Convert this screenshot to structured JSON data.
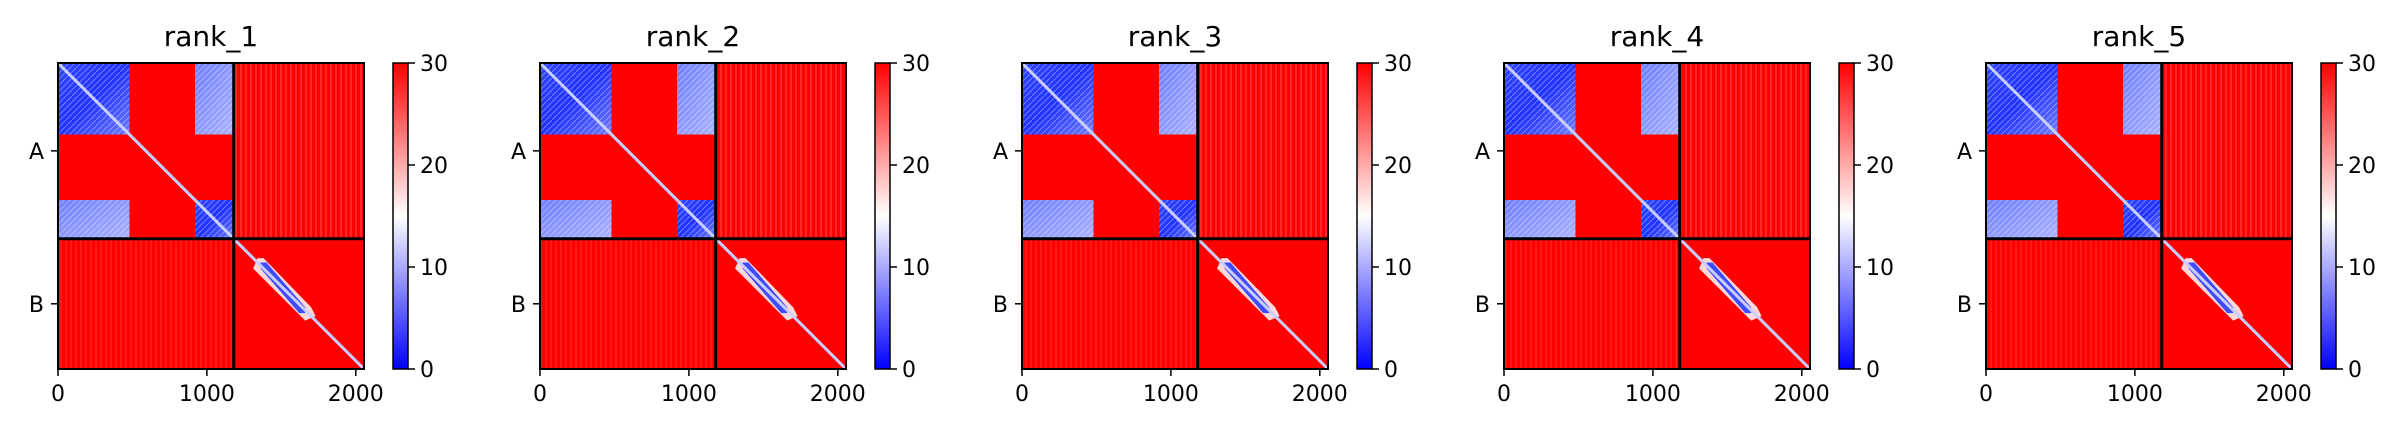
{
  "chart_data": {
    "type": "heatmap",
    "colormap": {
      "name": "bwr",
      "low_color": "#0000ff",
      "mid_color": "#ffffff",
      "high_color": "#ff0000",
      "vmin": 0,
      "vmax": 30,
      "ticks": [
        "0",
        "10",
        "20",
        "30"
      ]
    },
    "xlim": [
      0,
      2055
    ],
    "ylim": [
      0,
      2055
    ],
    "x_ticks": [
      {
        "value": 0,
        "label": "0"
      },
      {
        "value": 1000,
        "label": "1000"
      },
      {
        "value": 2000,
        "label": "2000"
      }
    ],
    "chain_boundary": 1180,
    "chains": [
      {
        "label": "A",
        "start": 0,
        "end": 1180,
        "center": 590
      },
      {
        "label": "B",
        "start": 1180,
        "end": 2055,
        "center": 1617
      }
    ],
    "panels": [
      {
        "title": "rank_1"
      },
      {
        "title": "rank_2"
      },
      {
        "title": "rank_3"
      },
      {
        "title": "rank_4"
      },
      {
        "title": "rank_5"
      }
    ],
    "features": {
      "a_block_1": [
        0,
        480
      ],
      "a_block_2": [
        920,
        1180
      ],
      "b_band": [
        1340,
        1700
      ]
    }
  }
}
